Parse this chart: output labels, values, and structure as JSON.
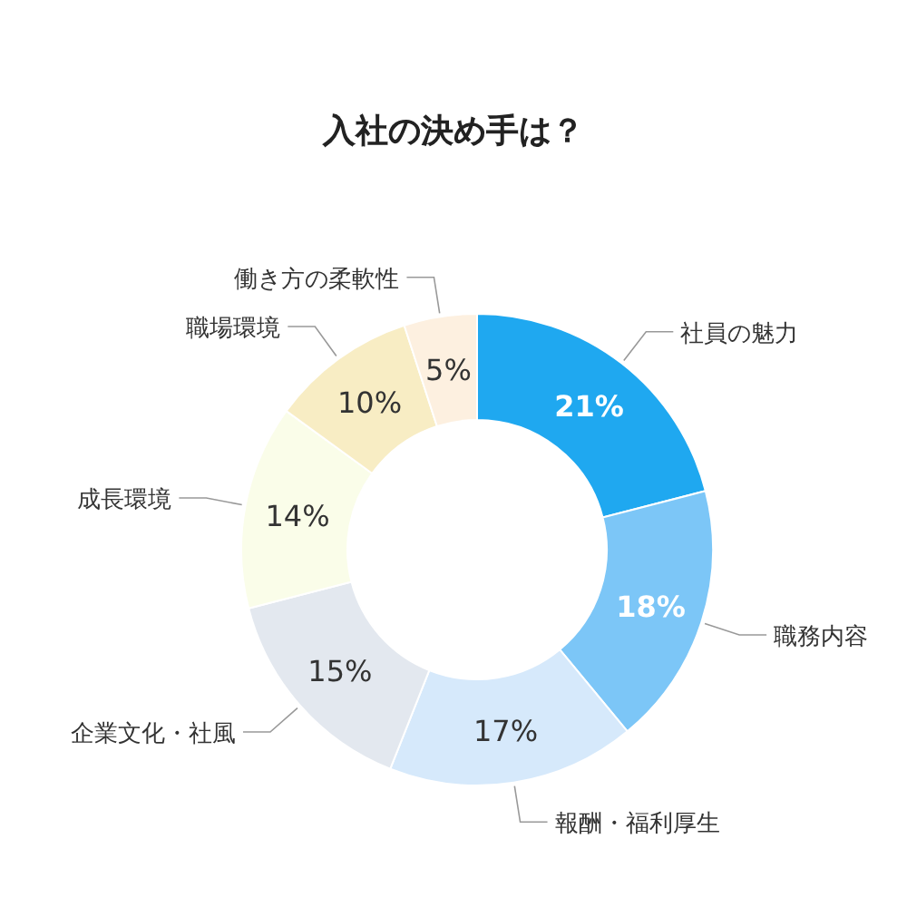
{
  "chart_data": {
    "type": "donut",
    "title": "入社の決め手は？",
    "categories": [
      "社員の魅力",
      "職務内容",
      "報酬・福利厚生",
      "企業文化・社風",
      "成長環境",
      "職場環境",
      "働き方の柔軟性"
    ],
    "values": [
      21,
      18,
      17,
      15,
      14,
      10,
      5
    ],
    "colors": [
      "#1fa8f0",
      "#7cc6f7",
      "#d6e9fb",
      "#e3e8ef",
      "#fafde9",
      "#f8edc4",
      "#fdf0e0"
    ],
    "value_labels": [
      "21%",
      "18%",
      "17%",
      "15%",
      "14%",
      "10%",
      "5%"
    ],
    "legend": false
  }
}
